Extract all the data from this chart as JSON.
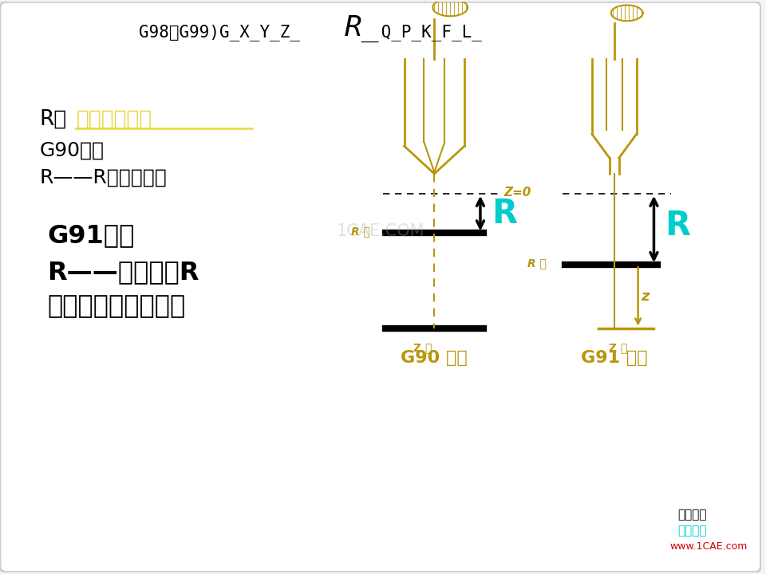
{
  "bg_color": "#f5f5f5",
  "golden": "#b8960c",
  "cyan": "#00cccc",
  "black": "#000000",
  "yellow_hl": "#e8d840",
  "red": "#cc0000",
  "gray": "#888888",
  "label_g90": "G90 编程",
  "label_g91": "G91 编程",
  "watermark1": "1CAE.COM",
  "watermark2": "机械学霸",
  "watermark3": "仿真在线",
  "watermark4": "www.1CAE.com"
}
